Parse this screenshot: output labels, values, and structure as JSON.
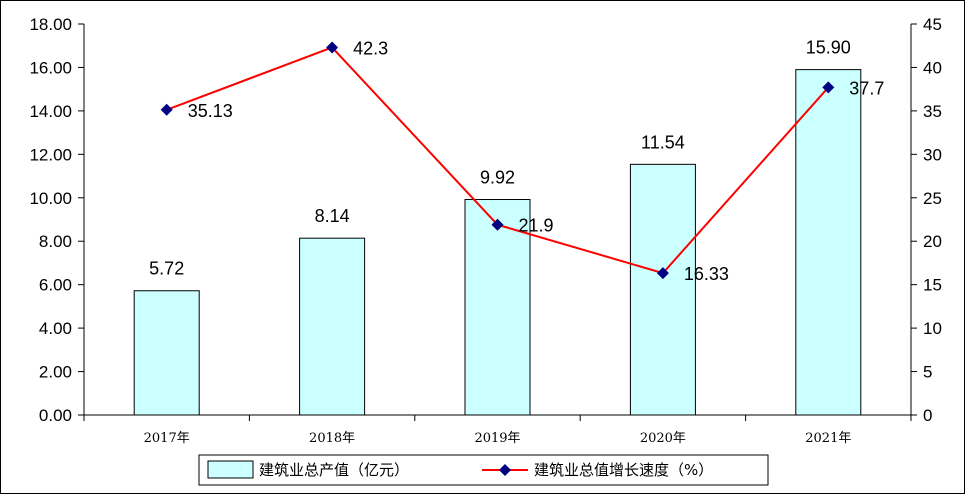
{
  "chart_data": {
    "type": "bar+line",
    "categories": [
      "2017年",
      "2018年",
      "2019年",
      "2020年",
      "2021年"
    ],
    "series": [
      {
        "name": "建筑业总产值（亿元）",
        "type": "bar",
        "axis": "left",
        "values": [
          5.72,
          8.14,
          9.92,
          11.54,
          15.9
        ],
        "labels": [
          "5.72",
          "8.14",
          "9.92",
          "11.54",
          "15.90"
        ],
        "color": "#CCFFFF"
      },
      {
        "name": "建筑业总值增长速度（%）",
        "type": "line",
        "axis": "right",
        "values": [
          35.13,
          42.3,
          21.9,
          16.33,
          37.7
        ],
        "labels": [
          "35.13",
          "42.3",
          "21.9",
          "16.33",
          "37.7"
        ],
        "color": "#FF0000",
        "marker_color": "#000080"
      }
    ],
    "y_left": {
      "ylim": [
        0,
        18
      ],
      "ticks": [
        "0.00",
        "2.00",
        "4.00",
        "6.00",
        "8.00",
        "10.00",
        "12.00",
        "14.00",
        "16.00",
        "18.00"
      ]
    },
    "y_right": {
      "ylim": [
        0,
        45
      ],
      "ticks": [
        "0",
        "5",
        "10",
        "15",
        "20",
        "25",
        "30",
        "35",
        "40",
        "45"
      ]
    },
    "legend_position": "bottom",
    "grid": false
  }
}
